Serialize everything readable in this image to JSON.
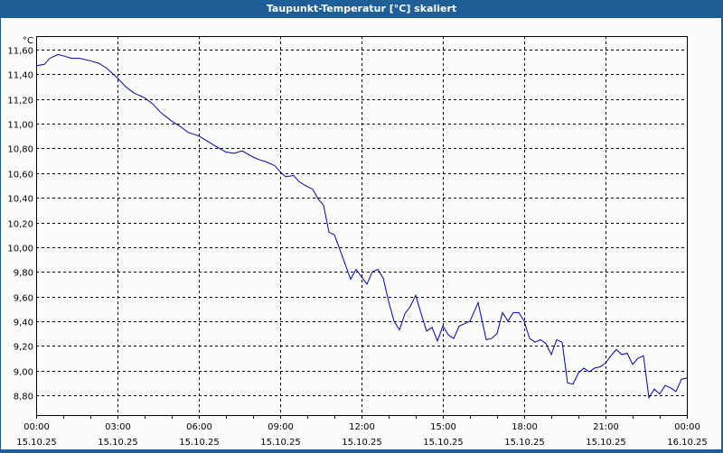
{
  "window": {
    "title": "Taupunkt-Temperatur [°C] skaliert"
  },
  "colors": {
    "titlebar": "#1d5f96",
    "background": "#fbfdfb",
    "line": "#0000b4",
    "grid": "#000000"
  },
  "chart_data": {
    "type": "line",
    "title": "Taupunkt-Temperatur [°C] skaliert",
    "xlabel": "",
    "ylabel": "°C",
    "ylim": [
      8.64,
      11.72
    ],
    "xlim_hours": [
      0,
      24
    ],
    "grid": true,
    "y_ticks": [
      "11,60",
      "11,40",
      "11,20",
      "11,00",
      "10,80",
      "10,60",
      "10,40",
      "10,20",
      "10,00",
      "9,80",
      "9,60",
      "9,40",
      "9,20",
      "9,00",
      "8,80"
    ],
    "y_tick_values": [
      11.6,
      11.4,
      11.2,
      11.0,
      10.8,
      10.6,
      10.4,
      10.2,
      10.0,
      9.8,
      9.6,
      9.4,
      9.2,
      9.0,
      8.8
    ],
    "x_ticks": [
      {
        "time": "00:00",
        "date": "15.10.25",
        "h": 0
      },
      {
        "time": "03:00",
        "date": "15.10.25",
        "h": 3
      },
      {
        "time": "06:00",
        "date": "15.10.25",
        "h": 6
      },
      {
        "time": "09:00",
        "date": "15.10.25",
        "h": 9
      },
      {
        "time": "12:00",
        "date": "15.10.25",
        "h": 12
      },
      {
        "time": "15:00",
        "date": "15.10.25",
        "h": 15
      },
      {
        "time": "18:00",
        "date": "15.10.25",
        "h": 18
      },
      {
        "time": "21:00",
        "date": "15.10.25",
        "h": 21
      },
      {
        "time": "00:00",
        "date": "16.10.25",
        "h": 24
      }
    ],
    "series": [
      {
        "name": "Taupunkt-Temperatur",
        "x_hours": [
          0,
          0.3,
          0.5,
          0.8,
          1.0,
          1.3,
          1.6,
          2.0,
          2.3,
          2.6,
          3.0,
          3.3,
          3.6,
          4.0,
          4.3,
          4.6,
          5.0,
          5.3,
          5.6,
          6.0,
          6.3,
          6.6,
          7.0,
          7.3,
          7.6,
          8.0,
          8.2,
          8.5,
          8.8,
          9.0,
          9.2,
          9.5,
          9.7,
          10.0,
          10.2,
          10.4,
          10.6,
          10.8,
          11.0,
          11.2,
          11.4,
          11.6,
          11.8,
          12.0,
          12.2,
          12.4,
          12.6,
          12.8,
          13.0,
          13.2,
          13.4,
          13.6,
          13.8,
          14.0,
          14.2,
          14.4,
          14.6,
          14.8,
          15.0,
          15.2,
          15.4,
          15.6,
          15.8,
          16.0,
          16.3,
          16.6,
          16.8,
          17.0,
          17.2,
          17.4,
          17.6,
          17.8,
          18.0,
          18.2,
          18.4,
          18.6,
          18.8,
          19.0,
          19.2,
          19.4,
          19.6,
          19.8,
          20.0,
          20.2,
          20.4,
          20.6,
          20.8,
          21.0,
          21.2,
          21.4,
          21.6,
          21.8,
          22.0,
          22.2,
          22.4,
          22.6,
          22.8,
          23.0,
          23.2,
          23.4,
          23.6,
          23.8,
          24.0
        ],
        "values": [
          11.47,
          11.48,
          11.53,
          11.56,
          11.55,
          11.53,
          11.53,
          11.51,
          11.49,
          11.45,
          11.37,
          11.3,
          11.25,
          11.21,
          11.16,
          11.09,
          11.02,
          10.98,
          10.93,
          10.9,
          10.86,
          10.82,
          10.77,
          10.76,
          10.78,
          10.73,
          10.71,
          10.69,
          10.66,
          10.61,
          10.57,
          10.58,
          10.53,
          10.49,
          10.47,
          10.39,
          10.34,
          10.12,
          10.1,
          9.98,
          9.86,
          9.74,
          9.82,
          9.76,
          9.7,
          9.8,
          9.82,
          9.75,
          9.56,
          9.4,
          9.33,
          9.46,
          9.52,
          9.61,
          9.46,
          9.32,
          9.35,
          9.24,
          9.36,
          9.29,
          9.26,
          9.36,
          9.38,
          9.4,
          9.55,
          9.25,
          9.26,
          9.3,
          9.47,
          9.4,
          9.47,
          9.47,
          9.4,
          9.26,
          9.23,
          9.25,
          9.22,
          9.13,
          9.25,
          9.23,
          8.9,
          8.89,
          8.98,
          9.02,
          8.99,
          9.02,
          9.03,
          9.06,
          9.12,
          9.17,
          9.13,
          9.14,
          9.05,
          9.1,
          9.12,
          8.78,
          8.85,
          8.81,
          8.88,
          8.86,
          8.83,
          8.93,
          8.94
        ]
      }
    ]
  }
}
